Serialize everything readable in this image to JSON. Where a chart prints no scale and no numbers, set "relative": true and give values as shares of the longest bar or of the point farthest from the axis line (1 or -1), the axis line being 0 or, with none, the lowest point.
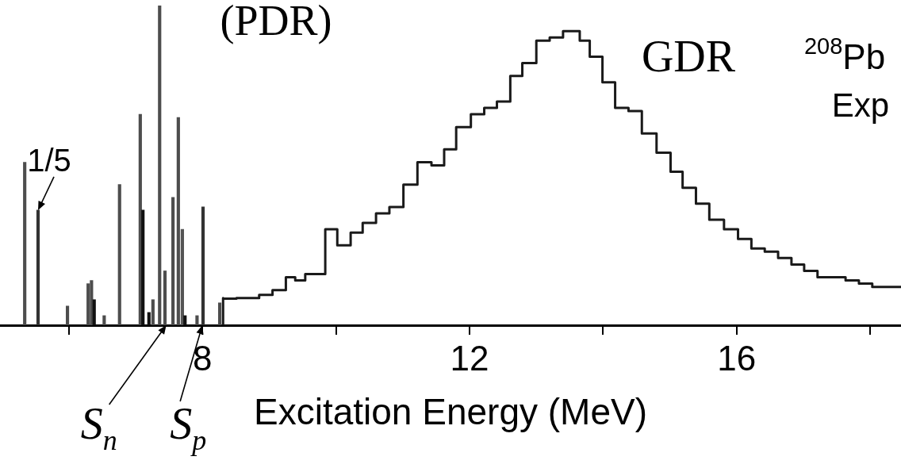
{
  "chart_data": {
    "type": "bar",
    "relative": true,
    "xlabel": "Excitation Energy (MeV)",
    "xlim": [
      4.97,
      18.46
    ],
    "xticks": [
      {
        "value": 6,
        "label": null
      },
      8,
      {
        "value": 10,
        "label": null
      },
      12,
      {
        "value": 14,
        "label": null
      },
      16,
      {
        "value": 18,
        "label": null
      }
    ],
    "grid": false,
    "legend": false,
    "series": [
      {
        "x": [
          5.34,
          5.54,
          5.98,
          6.29,
          6.34,
          6.38,
          6.53,
          6.76,
          7.07,
          7.11,
          7.2,
          7.26,
          7.36,
          7.44,
          7.56,
          7.64,
          7.7,
          7.74,
          7.92,
          8.01,
          8.26
        ],
        "values": [
          0.51,
          0.36,
          0.06,
          0.13,
          0.14,
          0.08,
          0.03,
          0.44,
          0.66,
          0.36,
          0.04,
          0.08,
          1,
          0.17,
          0.4,
          0.65,
          0.3,
          0.03,
          0.03,
          0.37,
          0.07
        ],
        "colors": [
          "#4d4d4d",
          "#333333",
          "#4d4d4d",
          "#4d4d4d",
          "#4d4d4d",
          "#111111",
          "#4d4d4d",
          "#4d4d4d",
          "#4d4d4d",
          "#111111",
          "#111111",
          "#4d4d4d",
          "#4d4d4d",
          "#4d4d4d",
          "#4d4d4d",
          "#4d4d4d",
          "#555555",
          "#111111",
          "#4d4d4d",
          "#333333",
          "#4d4d4d"
        ]
      },
      {
        "type": "step",
        "color": "#1a1a1a",
        "x": [
          8.31,
          8.31,
          8.51,
          8.85,
          9.05,
          9.25,
          9.39,
          9.54,
          9.84,
          10.02,
          10.22,
          10.4,
          10.6,
          10.8,
          11.01,
          11.22,
          11.43,
          11.62,
          11.8,
          12.02,
          12.22,
          12.41,
          12.61,
          12.79,
          13.0,
          13.2,
          13.4,
          13.53,
          13.65,
          13.8,
          13.99,
          14.18,
          14.38,
          14.58,
          14.8,
          15.01,
          15.19,
          15.39,
          15.59,
          15.81,
          16.02,
          16.22,
          16.42,
          16.62,
          16.82,
          17.01,
          17.21,
          17.63,
          17.83,
          18.03,
          18.24,
          18.46
        ],
        "values": [
          0,
          0.085,
          0.083,
          0.085,
          0.095,
          0.11,
          0.15,
          0.14,
          0.16,
          0.3,
          0.25,
          0.29,
          0.32,
          0.35,
          0.37,
          0.44,
          0.51,
          0.5,
          0.55,
          0.62,
          0.66,
          0.68,
          0.7,
          0.78,
          0.82,
          0.89,
          0.9,
          0.92,
          0.92,
          0.89,
          0.84,
          0.76,
          0.68,
          0.67,
          0.6,
          0.54,
          0.48,
          0.43,
          0.38,
          0.33,
          0.3,
          0.27,
          0.24,
          0.23,
          0.21,
          0.19,
          0.17,
          0.15,
          0.14,
          0.13,
          0.12,
          0.12
        ]
      }
    ],
    "annotations": [
      "(PDR)",
      "GDR",
      "$^{208}$Pb",
      "Exp",
      {
        "text": "1/5",
        "x": 5.54,
        "y": 0.36
      },
      {
        "text": "S$_{n}$",
        "x": 7.46,
        "y": 0
      },
      {
        "text": "S$_{p}$",
        "x": 8.0,
        "y": 0
      }
    ]
  }
}
